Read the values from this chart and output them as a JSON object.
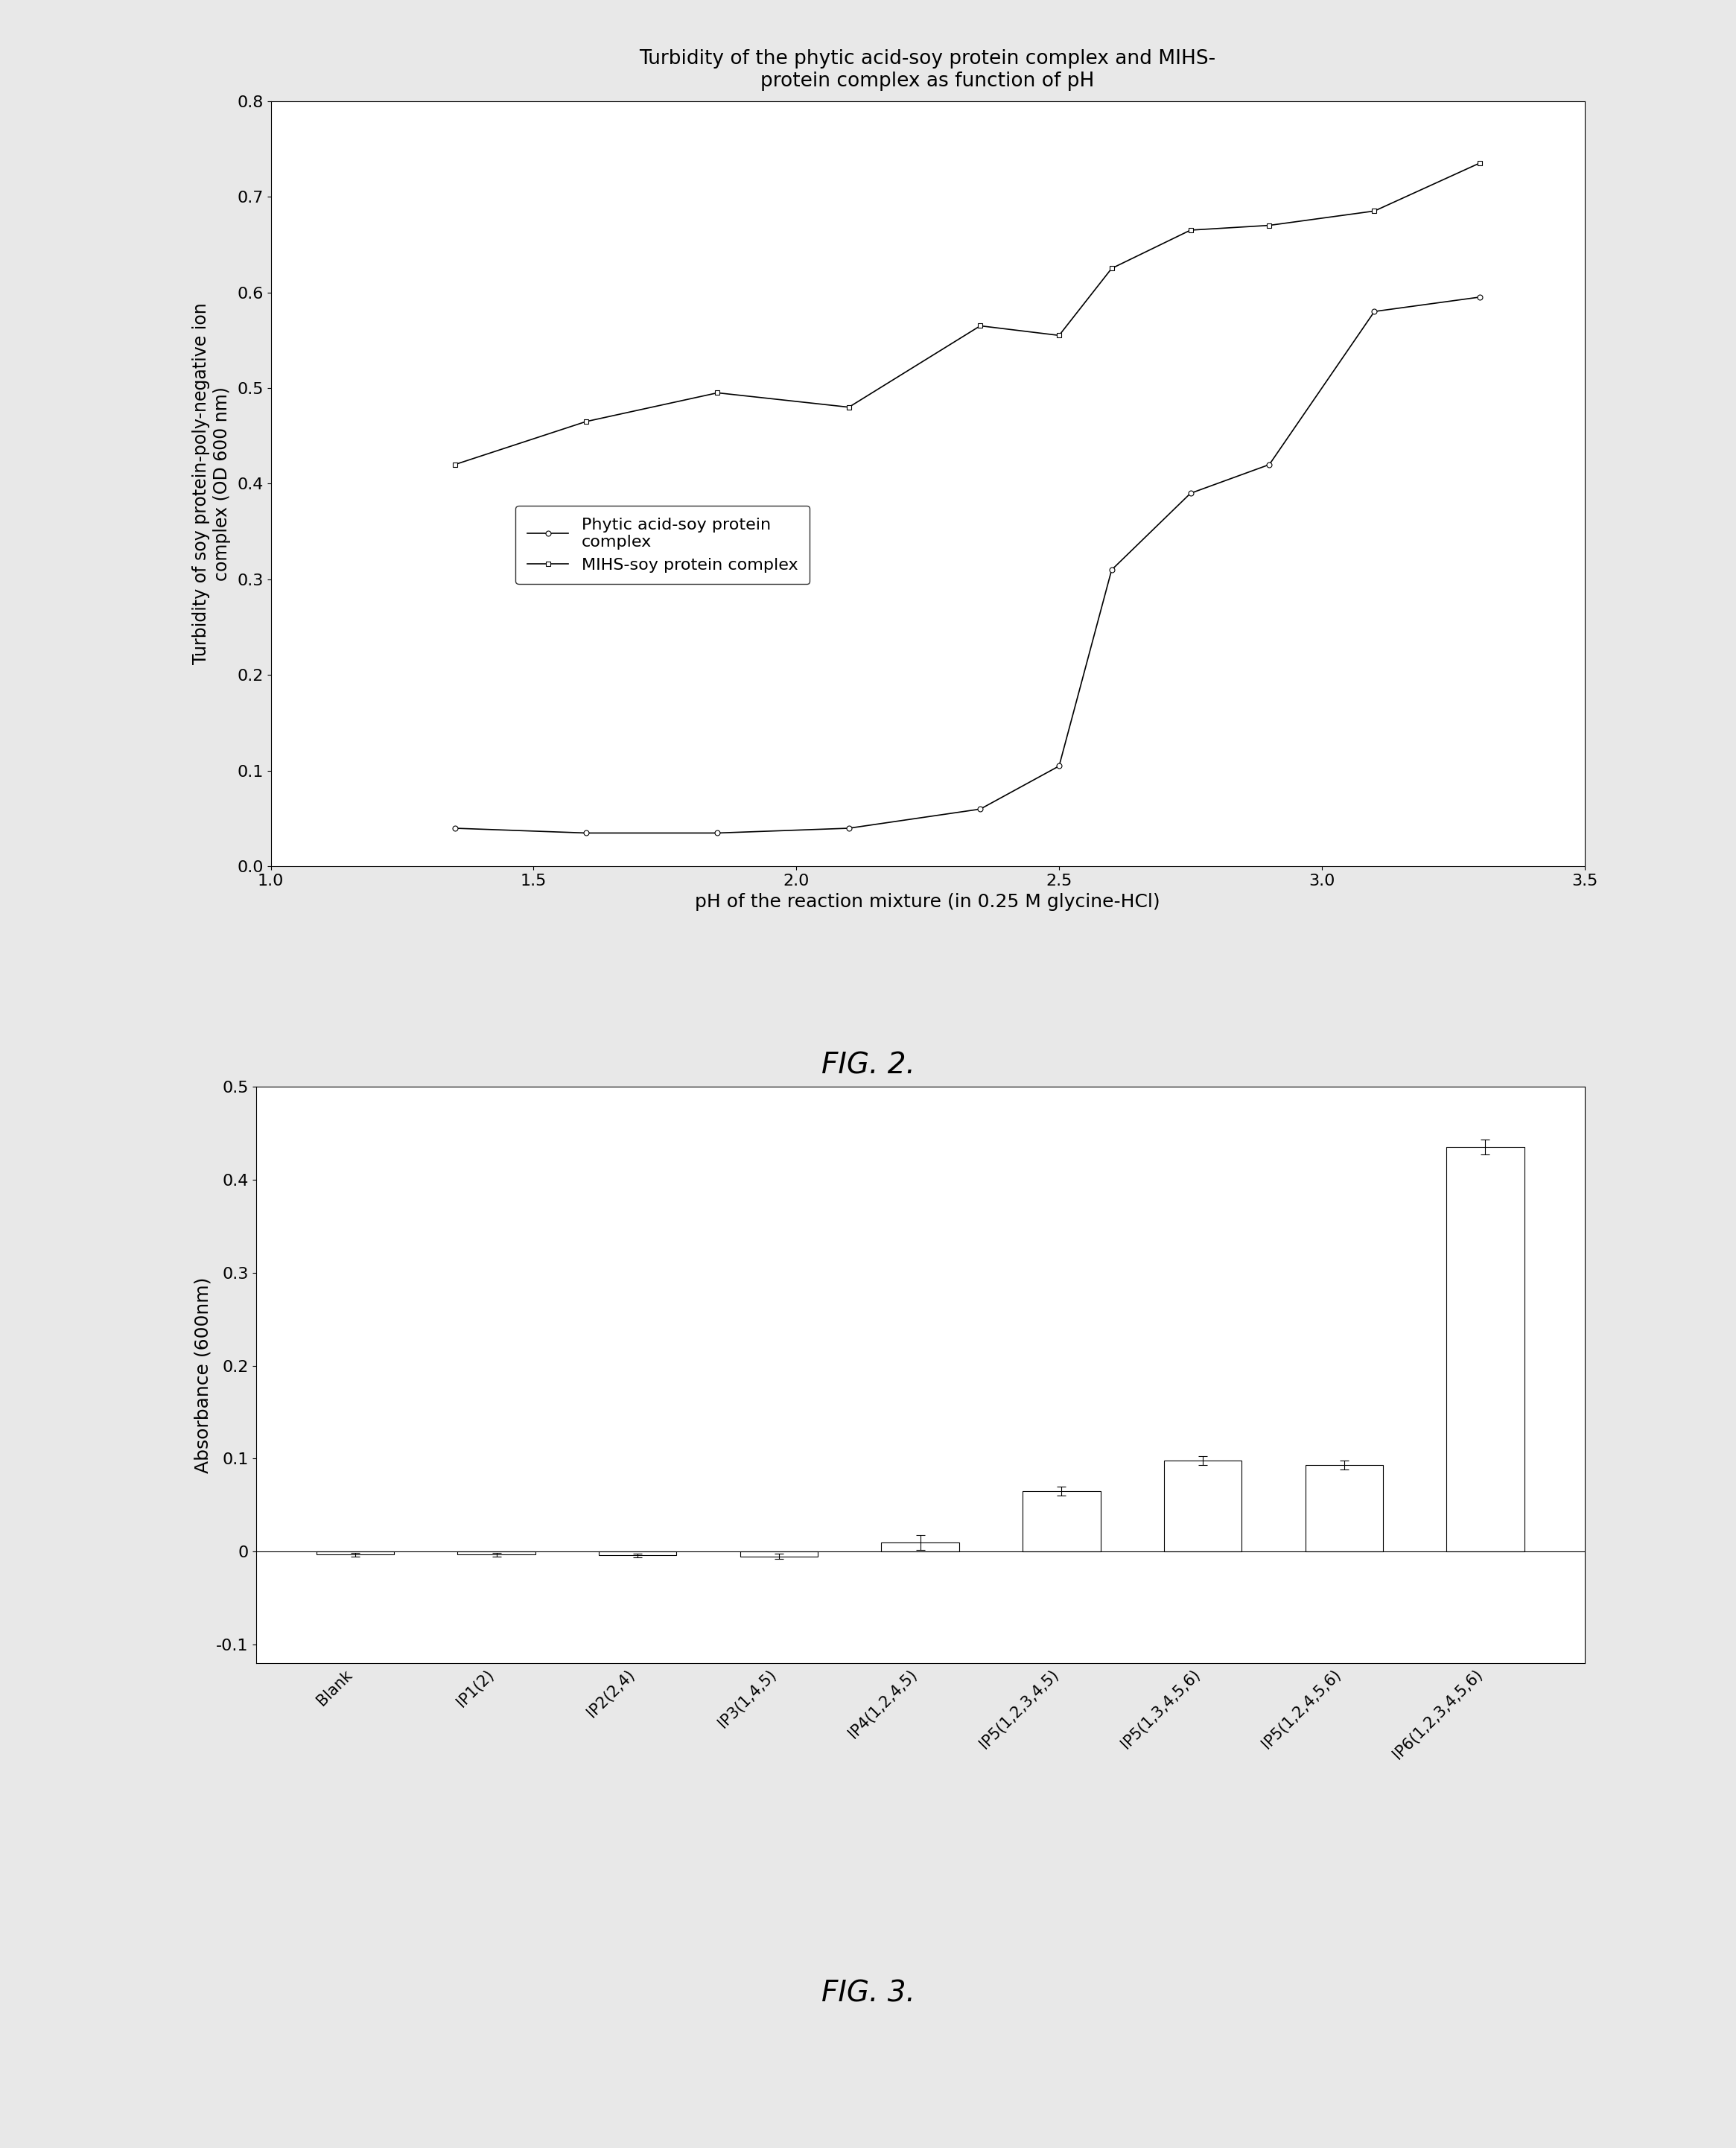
{
  "fig2": {
    "title": "Turbidity of the phytic acid-soy protein complex and MIHS-\nprotein complex as function of pH",
    "xlabel": "pH of the reaction mixture (in 0.25 M glycine-HCl)",
    "ylabel": "Turbidity of soy protein-poly-negative ion\ncomplex (OD 600 nm)",
    "xlim": [
      1,
      3.5
    ],
    "ylim": [
      0,
      0.8
    ],
    "xticks": [
      1,
      1.5,
      2,
      2.5,
      3,
      3.5
    ],
    "yticks": [
      0,
      0.1,
      0.2,
      0.3,
      0.4,
      0.5,
      0.6,
      0.7,
      0.8
    ],
    "line1": {
      "label": "Phytic acid-soy protein\ncomplex",
      "x": [
        1.35,
        1.6,
        1.85,
        2.1,
        2.35,
        2.5,
        2.6,
        2.75,
        2.9,
        3.1,
        3.3
      ],
      "y": [
        0.04,
        0.035,
        0.035,
        0.04,
        0.06,
        0.105,
        0.31,
        0.39,
        0.42,
        0.58,
        0.595
      ],
      "marker": "o",
      "color": "black",
      "markersize": 5,
      "markerfacecolor": "white"
    },
    "line2": {
      "label": "MIHS-soy protein complex",
      "x": [
        1.35,
        1.6,
        1.85,
        2.1,
        2.35,
        2.5,
        2.6,
        2.75,
        2.9,
        3.1,
        3.3
      ],
      "y": [
        0.42,
        0.465,
        0.495,
        0.48,
        0.565,
        0.555,
        0.625,
        0.665,
        0.67,
        0.685,
        0.735
      ],
      "marker": "s",
      "color": "black",
      "markersize": 5,
      "markerfacecolor": "white"
    }
  },
  "fig3": {
    "ylabel": "Absorbance (600nm)",
    "ylim": [
      -0.12,
      0.5
    ],
    "yticks": [
      -0.1,
      0,
      0.1,
      0.2,
      0.3,
      0.4,
      0.5
    ],
    "categories": [
      "Blank",
      "IP1(2)",
      "IP2(2,4)",
      "IP3(1,4,5)",
      "IP4(1,2,4,5)",
      "IP5(1,2,3,4,5)",
      "IP5(1,3,4,5,6)",
      "IP5(1,2,4,5,6)",
      "IP6(1,2,3,4,5,6)"
    ],
    "values": [
      -0.003,
      -0.003,
      -0.004,
      -0.005,
      0.01,
      0.065,
      0.098,
      0.093,
      0.435
    ],
    "errors": [
      0.002,
      0.002,
      0.002,
      0.003,
      0.008,
      0.005,
      0.005,
      0.005,
      0.008
    ],
    "bar_color": "white",
    "bar_edgecolor": "black"
  },
  "figcaption2": "FIG. 2.",
  "figcaption3": "FIG. 3.",
  "page_bg": "#e8e8e8"
}
